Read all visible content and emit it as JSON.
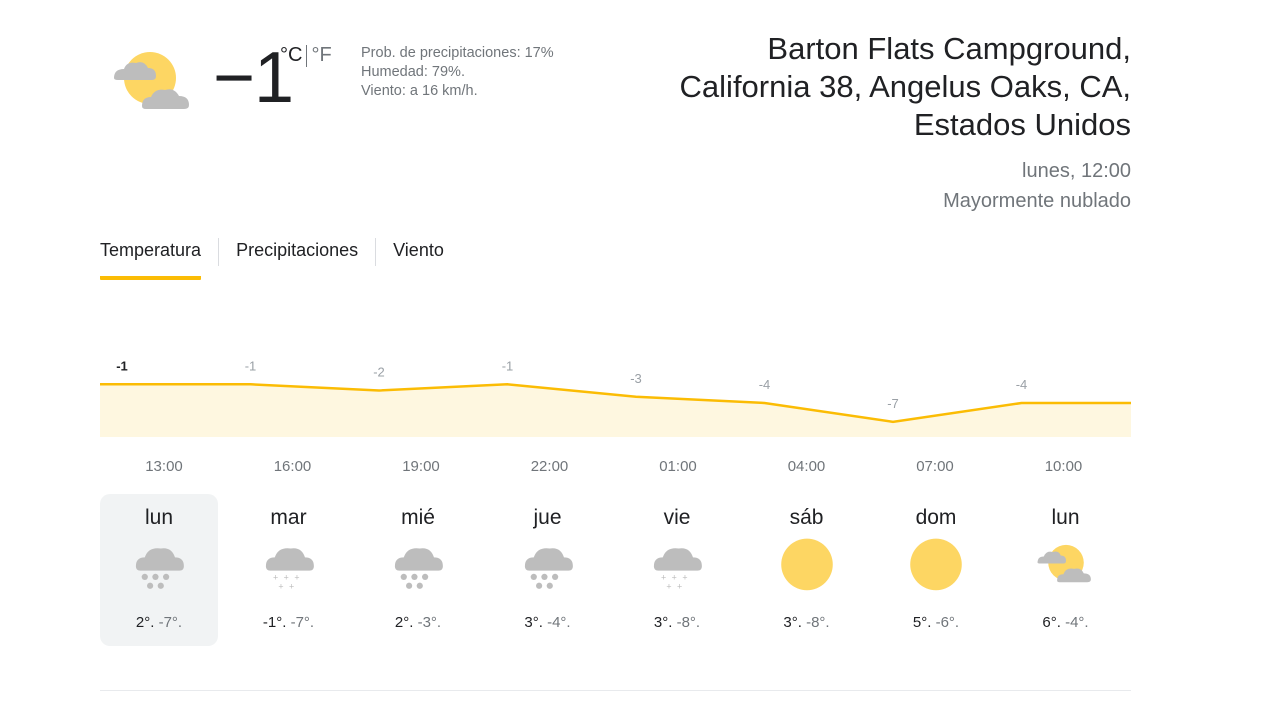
{
  "current": {
    "icon": "partly-cloudy-icon",
    "temperature": "−1",
    "unit_c": "°C",
    "unit_f": "°F",
    "precipitation": "Prob. de precipitaciones: 17%",
    "humidity": "Humedad: 79%.",
    "wind": "Viento: a 16 km/h."
  },
  "location": {
    "line1": "Barton Flats Campground,",
    "line2": "California 38, Angelus Oaks, CA,",
    "line3": "Estados Unidos",
    "datetime": "lunes, 12:00",
    "condition": "Mayormente nublado"
  },
  "tabs": [
    {
      "label": "Temperatura",
      "active": true
    },
    {
      "label": "Precipitaciones",
      "active": false
    },
    {
      "label": "Viento",
      "active": false
    }
  ],
  "chart_data": {
    "type": "area",
    "color": "#fbbc04",
    "fill": "#fef7e0",
    "x": [
      "13:00",
      "16:00",
      "19:00",
      "22:00",
      "01:00",
      "04:00",
      "07:00",
      "10:00"
    ],
    "values": [
      -1,
      -1,
      -2,
      -1,
      -3,
      -4,
      -7,
      -4
    ],
    "value_labels": [
      "-1",
      "-1",
      "-2",
      "-1",
      "-3",
      "-4",
      "-7",
      "-4"
    ]
  },
  "days": [
    {
      "name": "lun",
      "icon": "snow-cloud-icon",
      "hi": "2°.",
      "lo": "-7°.",
      "selected": true
    },
    {
      "name": "mar",
      "icon": "light-snow-cloud-icon",
      "hi": "-1°.",
      "lo": "-7°.",
      "selected": false
    },
    {
      "name": "mié",
      "icon": "snow-cloud-icon",
      "hi": "2°.",
      "lo": "-3°.",
      "selected": false
    },
    {
      "name": "jue",
      "icon": "snow-cloud-icon",
      "hi": "3°.",
      "lo": "-4°.",
      "selected": false
    },
    {
      "name": "vie",
      "icon": "light-snow-cloud-icon",
      "hi": "3°.",
      "lo": "-8°.",
      "selected": false
    },
    {
      "name": "sáb",
      "icon": "sun-icon",
      "hi": "3°.",
      "lo": "-8°.",
      "selected": false
    },
    {
      "name": "dom",
      "icon": "sun-icon",
      "hi": "5°.",
      "lo": "-6°.",
      "selected": false
    },
    {
      "name": "lun",
      "icon": "partly-cloudy-icon",
      "hi": "6°.",
      "lo": "-4°.",
      "selected": false
    }
  ]
}
